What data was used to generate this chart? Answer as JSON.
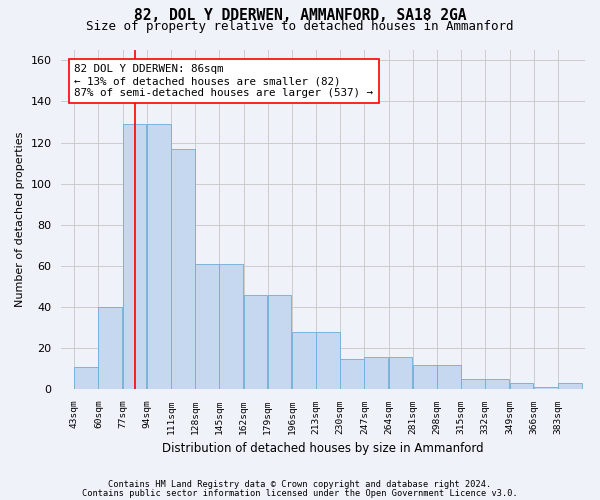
{
  "title1": "82, DOL Y DDERWEN, AMMANFORD, SA18 2GA",
  "title2": "Size of property relative to detached houses in Ammanford",
  "xlabel": "Distribution of detached houses by size in Ammanford",
  "ylabel": "Number of detached properties",
  "footnote1": "Contains HM Land Registry data © Crown copyright and database right 2024.",
  "footnote2": "Contains public sector information licensed under the Open Government Licence v3.0.",
  "bar_labels": [
    "43sqm",
    "60sqm",
    "77sqm",
    "94sqm",
    "111sqm",
    "128sqm",
    "145sqm",
    "162sqm",
    "179sqm",
    "196sqm",
    "213sqm",
    "230sqm",
    "247sqm",
    "264sqm",
    "281sqm",
    "298sqm",
    "315sqm",
    "332sqm",
    "349sqm",
    "366sqm",
    "383sqm"
  ],
  "bar_values": [
    11,
    40,
    129,
    129,
    117,
    61,
    61,
    46,
    46,
    28,
    28,
    15,
    16,
    16,
    12,
    12,
    5,
    5,
    3,
    1,
    3
  ],
  "bar_color": "#c5d8f0",
  "bar_edge_color": "#6baed6",
  "annotation_line1": "82 DOL Y DDERWEN: 86sqm",
  "annotation_line2": "← 13% of detached houses are smaller (82)",
  "annotation_line3": "87% of semi-detached houses are larger (537) →",
  "red_line_x": 86,
  "ylim": [
    0,
    165
  ],
  "yticks": [
    0,
    20,
    40,
    60,
    80,
    100,
    120,
    140,
    160
  ],
  "background_color": "#f0f2fa",
  "grid_color": "#cccccc",
  "title_fontsize": 10.5,
  "subtitle_fontsize": 9,
  "annotation_fontsize": 7.8
}
